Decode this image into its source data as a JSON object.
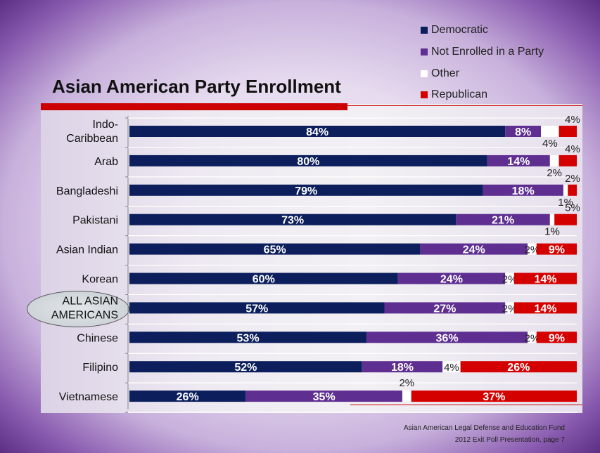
{
  "title": "Asian American Party Enrollment",
  "legend": {
    "democratic": "Democratic",
    "not_enrolled": "Not Enrolled in a Party",
    "other": "Other",
    "republican": "Republican"
  },
  "footer": {
    "line1": "Asian American Legal Defense and Education Fund",
    "line2": "2012 Exit Poll Presentation, page 7"
  },
  "colors": {
    "democratic": "#0c1f5c",
    "not_enrolled": "#5e2f91",
    "other": "#ffffff",
    "republican": "#d40000"
  },
  "chart_data": {
    "type": "bar",
    "orientation": "horizontal",
    "stacked": true,
    "title": "Asian American Party Enrollment",
    "categories": [
      [
        "Indo-",
        "Caribbean"
      ],
      [
        "Arab"
      ],
      [
        "Bangladeshi"
      ],
      [
        "Pakistani"
      ],
      [
        "Asian Indian"
      ],
      [
        "Korean"
      ],
      [
        "ALL ASIAN",
        "AMERICANS"
      ],
      [
        "Chinese"
      ],
      [
        "Filipino"
      ],
      [
        "Vietnamese"
      ]
    ],
    "series": [
      {
        "name": "Democratic",
        "values": [
          84,
          80,
          79,
          73,
          65,
          60,
          57,
          53,
          52,
          26
        ]
      },
      {
        "name": "Not Enrolled in a Party",
        "values": [
          8,
          14,
          18,
          21,
          24,
          24,
          27,
          36,
          18,
          35
        ]
      },
      {
        "name": "Other",
        "values": [
          4,
          2,
          1,
          1,
          2,
          2,
          2,
          2,
          4,
          2
        ]
      },
      {
        "name": "Republican",
        "values": [
          4,
          4,
          2,
          5,
          9,
          14,
          14,
          9,
          26,
          37
        ]
      }
    ],
    "xlim": [
      0,
      100
    ],
    "legend_position": "top-right",
    "grid": true
  }
}
